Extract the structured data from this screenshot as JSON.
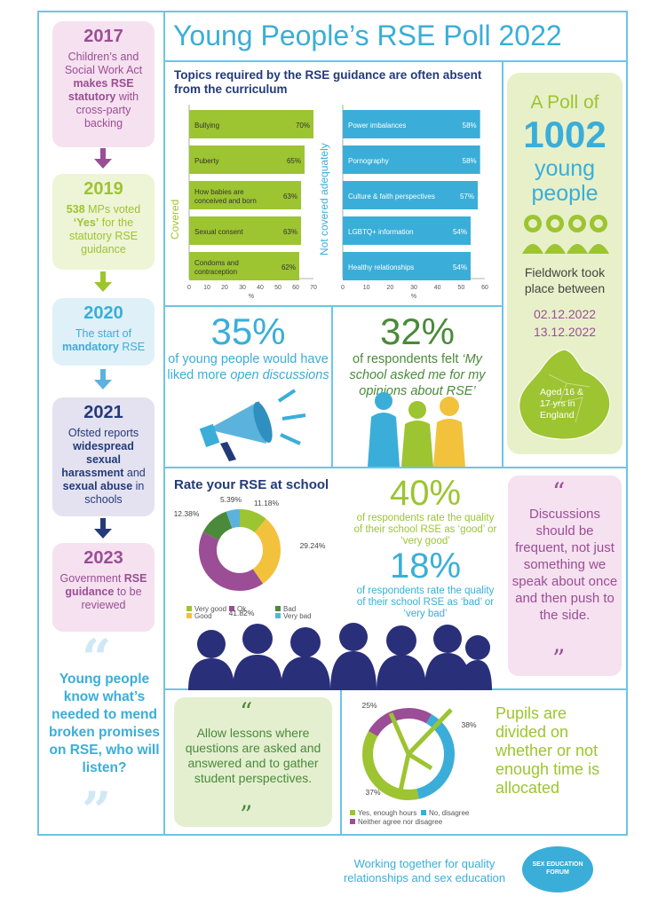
{
  "title": "Young People’s RSE Poll 2022",
  "timeline": [
    {
      "year": "2017",
      "pre": "Children’s and Social Work Act ",
      "bold": "makes RSE statutory",
      "post": " with cross-party backing"
    },
    {
      "year": "2019",
      "bold": "538",
      "pre2": " MPs voted ",
      "bold2": "‘Yes’",
      "post": " for the statutory RSE guidance"
    },
    {
      "year": "2020",
      "pre": "The start of ",
      "bold": "mandatory",
      "post": " RSE"
    },
    {
      "year": "2021",
      "pre": "Ofsted reports ",
      "bold": "widespread sexual harassment",
      "mid": " and ",
      "bold2": "sexual abuse",
      "post": " in schools"
    },
    {
      "year": "2023",
      "pre": "Government ",
      "bold": "RSE guidance",
      "post": " to be reviewed"
    }
  ],
  "left_quote": "Young people know what’s needed to mend broken promises on RSE, who will listen?",
  "topics": {
    "title": "Topics required by the RSE guidance are often absent from the curriculum",
    "covered_label": "Covered",
    "not_covered_label": "Not covered adequately",
    "axis_unit": "%"
  },
  "poll": {
    "line1": "A Poll of",
    "number": "1002",
    "line2": "young",
    "line3": "people",
    "fieldwork": "Fieldwork took place between",
    "date1": "02.12.2022",
    "date2": "13.12.2022",
    "map_text": "Aged 16 & 17 yrs in England"
  },
  "stat35": {
    "num": "35%",
    "pre": "of young people would have liked more ",
    "em": "open discussions"
  },
  "stat32": {
    "num": "32%",
    "pre": "of respondents felt ",
    "em": "‘My school asked me for my opinions about RSE’"
  },
  "rate": {
    "title": "Rate your RSE at school",
    "stat40": "40%",
    "stat40_text": "of respondents rate the quality of their school RSE as ‘good’ or ‘very good’",
    "stat18": "18%",
    "stat18_text": "of respondents rate the quality of their school RSE as ‘bad’ or ‘very bad’"
  },
  "quote_right": "Discussions should be frequent, not just something we speak about once and then push to the side.",
  "quote_bottom": "Allow lessons where questions are asked and answered and to gather student perspectives.",
  "time_text": "Pupils are divided on whether or not enough time is allocated",
  "footer": {
    "text": "Working together for quality relationships and sex education",
    "logo": "SEX EDUCATION FORUM"
  },
  "colors": {
    "blue": "#3aaed8",
    "green": "#9dc431",
    "purple": "#9b4d96",
    "navy": "#233a7a",
    "yellow": "#f2c23c",
    "darkgreen": "#4a8a3a",
    "lightblue": "#5bb3dd"
  },
  "chart_data": [
    {
      "type": "bar",
      "orientation": "horizontal",
      "series_label": "Covered",
      "categories": [
        "Bullying",
        "Puberty",
        "How babies are conceived and born",
        "Sexual consent",
        "Condoms and contraception"
      ],
      "values": [
        70,
        65,
        63,
        63,
        62
      ],
      "value_labels": [
        "70%",
        "65%",
        "63%",
        "63%",
        "62%"
      ],
      "xlim": [
        0,
        70
      ],
      "ticks": [
        "0",
        "10",
        "20",
        "30",
        "40",
        "50",
        "60",
        "70"
      ],
      "xlabel": "%",
      "color": "#9dc431"
    },
    {
      "type": "bar",
      "orientation": "horizontal",
      "series_label": "Not covered adequately",
      "categories": [
        "Power imbalances",
        "Pornography",
        "Culture & faith perspectives",
        "LGBTQ+ information",
        "Healthy relationships"
      ],
      "values": [
        58,
        58,
        57,
        54,
        54
      ],
      "value_labels": [
        "58%",
        "58%",
        "57%",
        "54%",
        "54%"
      ],
      "xlim": [
        0,
        60
      ],
      "ticks": [
        "0",
        "10",
        "20",
        "30",
        "40",
        "50",
        "60"
      ],
      "xlabel": "%",
      "color": "#3aaed8"
    },
    {
      "type": "pie",
      "title": "Rate your RSE at school",
      "categories": [
        "Very good",
        "Good",
        "Ok",
        "Bad",
        "Very bad"
      ],
      "values": [
        11.18,
        29.24,
        41.82,
        12.38,
        5.39
      ],
      "value_labels": [
        "11.18%",
        "29.24%",
        "41.82%",
        "12.38%",
        "5.39%"
      ],
      "colors": [
        "#9dc431",
        "#f2c23c",
        "#9b4d96",
        "#4a8a3a",
        "#5bb3dd"
      ],
      "legend": "bottom"
    },
    {
      "type": "pie",
      "categories": [
        "Yes, enough hours",
        "No, disagree",
        "Neither agree nor disagree"
      ],
      "values": [
        37,
        38,
        25
      ],
      "value_labels": [
        "37%",
        "38%",
        "25%"
      ],
      "colors": [
        "#9dc431",
        "#3aaed8",
        "#9b4d96"
      ],
      "legend": "bottom"
    }
  ]
}
